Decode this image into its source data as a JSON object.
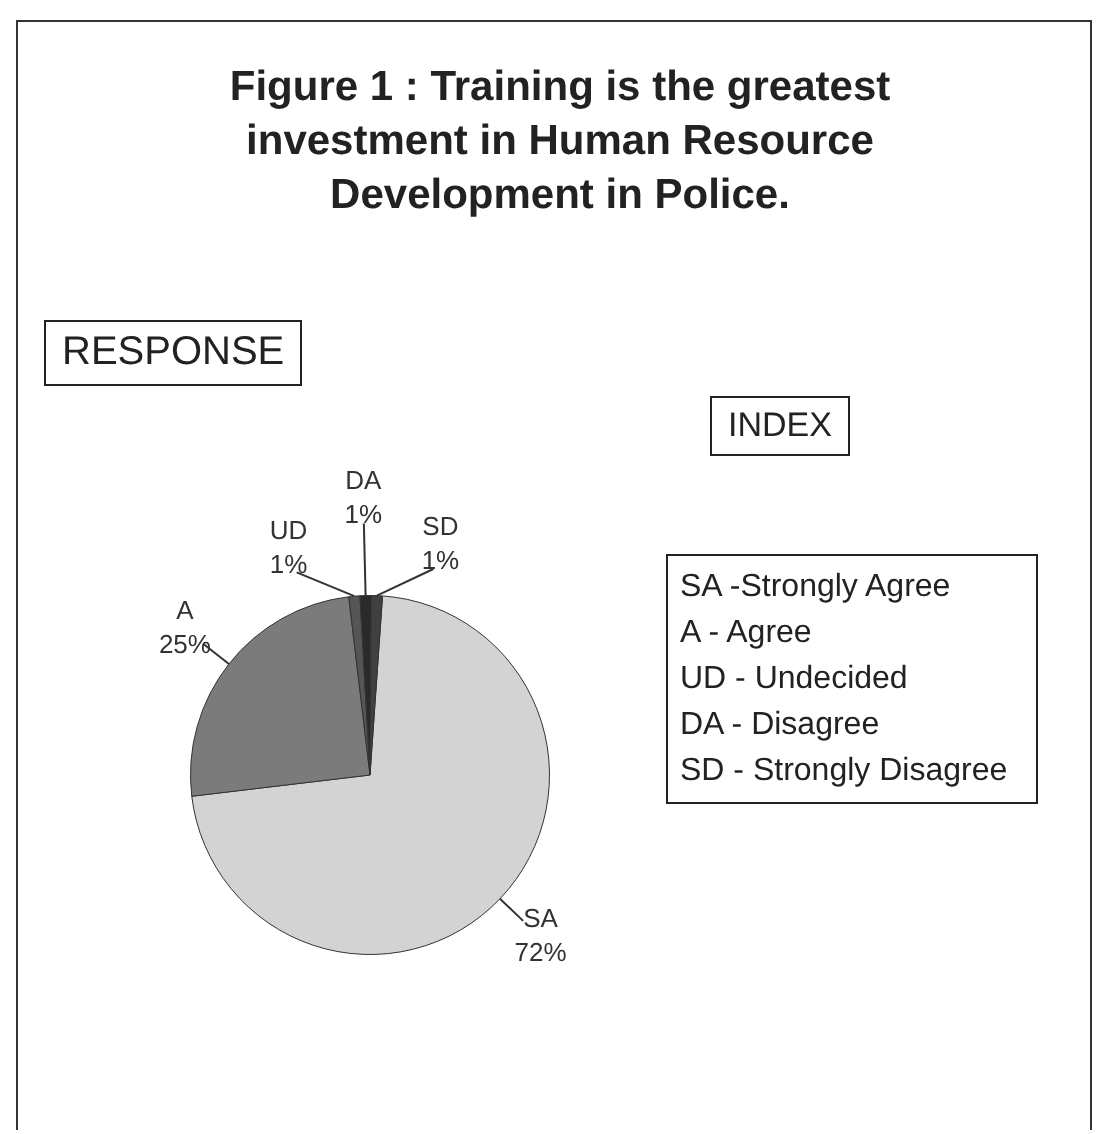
{
  "chart_data": {
    "type": "pie",
    "title": "Figure 1 : Training is the greatest investment in Human Resource Development in Police.",
    "categories": [
      "SA",
      "A",
      "UD",
      "DA",
      "SD"
    ],
    "values": [
      72,
      25,
      1,
      1,
      1
    ],
    "value_labels": [
      "72%",
      "25%",
      "1%",
      "1%",
      "1%"
    ],
    "colors": [
      "#d3d3d3",
      "#7b7b7b",
      "#555555",
      "#2a2a2a",
      "#404040"
    ],
    "legend": false,
    "annotations": [
      "RESPONSE",
      "INDEX",
      "SA -Strongly Agree",
      "A - Agree",
      "UD - Undecided",
      "DA - Disagree",
      "SD - Strongly Disagree"
    ]
  }
}
